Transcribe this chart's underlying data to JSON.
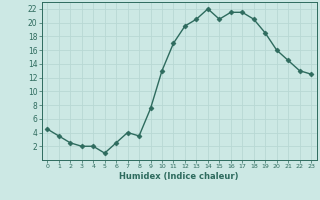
{
  "x": [
    0,
    1,
    2,
    3,
    4,
    5,
    6,
    7,
    8,
    9,
    10,
    11,
    12,
    13,
    14,
    15,
    16,
    17,
    18,
    19,
    20,
    21,
    22,
    23
  ],
  "y": [
    4.5,
    3.5,
    2.5,
    2.0,
    2.0,
    1.0,
    2.5,
    4.0,
    3.5,
    7.5,
    13.0,
    17.0,
    19.5,
    20.5,
    22.0,
    20.5,
    21.5,
    21.5,
    20.5,
    18.5,
    16.0,
    14.5,
    13.0,
    12.5
  ],
  "line_color": "#2e6b5e",
  "marker": "D",
  "markersize": 2.5,
  "bg_color": "#cce8e4",
  "grid_color": "#b8d8d4",
  "xlabel": "Humidex (Indice chaleur)",
  "xlim": [
    -0.5,
    23.5
  ],
  "ylim": [
    0,
    23
  ],
  "yticks": [
    2,
    4,
    6,
    8,
    10,
    12,
    14,
    16,
    18,
    20,
    22
  ],
  "xticks": [
    0,
    1,
    2,
    3,
    4,
    5,
    6,
    7,
    8,
    9,
    10,
    11,
    12,
    13,
    14,
    15,
    16,
    17,
    18,
    19,
    20,
    21,
    22,
    23
  ],
  "label_color": "#2e6b5e",
  "tick_color": "#2e6b5e",
  "spine_color": "#2e6b5e"
}
